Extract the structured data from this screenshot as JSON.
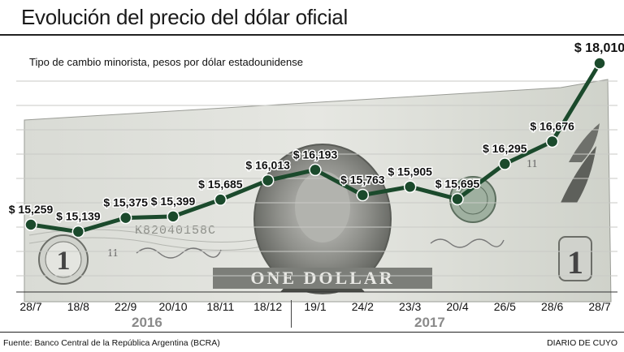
{
  "page": {
    "title": "Evolución del precio del dólar oficial",
    "subtitle": "Tipo de cambio minorista, pesos por dólar estadounidense",
    "source": "Fuente: Banco Central de la República Argentina (BCRA)",
    "credit": "DIARIO DE CUYO"
  },
  "years": {
    "left": "2016",
    "right": "2017"
  },
  "banknote": {
    "denomination": "1",
    "text": "ONE DOLLAR",
    "serial": "K82040158C",
    "plate": "11"
  },
  "colors": {
    "line": "#1b4a2c",
    "marker": "#1b4a2c",
    "title": "#1a1a1a",
    "year": "#8a8a8a"
  },
  "chart_data": {
    "type": "line",
    "title": "Evolución del precio del dólar oficial",
    "subtitle": "Tipo de cambio minorista, pesos por dólar estadounidense",
    "categories": [
      "28/7",
      "18/8",
      "22/9",
      "20/10",
      "18/11",
      "18/12",
      "19/1",
      "24/2",
      "23/3",
      "20/4",
      "26/5",
      "28/6",
      "28/7"
    ],
    "values": [
      15.259,
      15.139,
      15.375,
      15.399,
      15.685,
      16.013,
      16.193,
      15.763,
      15.905,
      15.695,
      16.295,
      16.676,
      18.01
    ],
    "value_labels": [
      "$ 15,259",
      "$ 15,139",
      "$ 15,375",
      "$ 15,399",
      "$ 15,685",
      "$ 16,013",
      "$ 16,193",
      "$ 15,763",
      "$ 15,905",
      "$ 15,695",
      "$ 16,295",
      "$ 16,676",
      "$ 18,010"
    ],
    "grid": true
  }
}
